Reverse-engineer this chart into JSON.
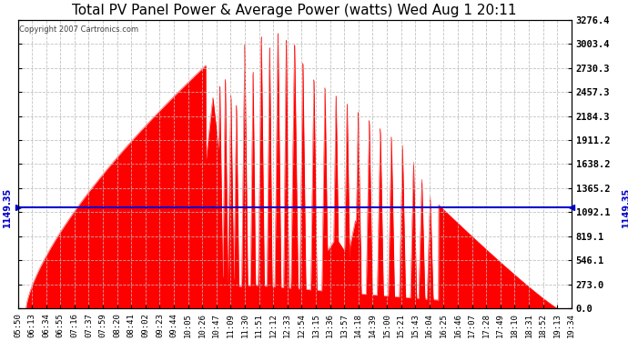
{
  "title": "Total PV Panel Power & Average Power (watts) Wed Aug 1 20:11",
  "copyright": "Copyright 2007 Cartronics.com",
  "avg_value": 1149.35,
  "ymax": 3276.4,
  "yticks": [
    0.0,
    273.0,
    546.1,
    819.1,
    1092.1,
    1365.2,
    1638.2,
    1911.2,
    2184.3,
    2457.3,
    2730.3,
    3003.4,
    3276.4
  ],
  "ytick_labels": [
    "0.0",
    "273.0",
    "546.1",
    "819.1",
    "1092.1",
    "1365.2",
    "1638.2",
    "1911.2",
    "2184.3",
    "2457.3",
    "2730.3",
    "3003.4",
    "3276.4"
  ],
  "xtick_labels": [
    "05:50",
    "06:13",
    "06:34",
    "06:55",
    "07:16",
    "07:37",
    "07:59",
    "08:20",
    "08:41",
    "09:02",
    "09:23",
    "09:44",
    "10:05",
    "10:26",
    "10:47",
    "11:09",
    "11:30",
    "11:51",
    "12:12",
    "12:33",
    "12:54",
    "13:15",
    "13:36",
    "13:57",
    "14:18",
    "14:39",
    "15:00",
    "15:21",
    "15:43",
    "16:04",
    "16:25",
    "16:46",
    "17:07",
    "17:28",
    "17:49",
    "18:10",
    "18:31",
    "18:52",
    "19:13",
    "19:34"
  ],
  "fill_color": "#FF0000",
  "line_color": "#0000CC",
  "bg_color": "#FFFFFF",
  "title_fontsize": 11,
  "avg_label": "1149.35",
  "spike_centers": [
    0.365,
    0.375,
    0.385,
    0.395,
    0.41,
    0.425,
    0.44,
    0.455,
    0.47,
    0.485,
    0.5,
    0.515,
    0.535,
    0.555,
    0.575,
    0.595,
    0.615,
    0.635,
    0.655,
    0.675,
    0.695,
    0.715,
    0.73,
    0.745
  ],
  "spike_heights": [
    2600,
    2700,
    2500,
    2400,
    3100,
    2800,
    3200,
    3100,
    3250,
    3200,
    3100,
    2900,
    2700,
    2600,
    2500,
    2400,
    2300,
    2200,
    2100,
    2000,
    1900,
    1700,
    1500,
    1300
  ],
  "spike_widths": [
    0.006,
    0.005,
    0.006,
    0.005,
    0.006,
    0.005,
    0.006,
    0.005,
    0.006,
    0.005,
    0.007,
    0.006,
    0.006,
    0.006,
    0.006,
    0.006,
    0.006,
    0.006,
    0.006,
    0.006,
    0.006,
    0.006,
    0.006,
    0.006
  ]
}
